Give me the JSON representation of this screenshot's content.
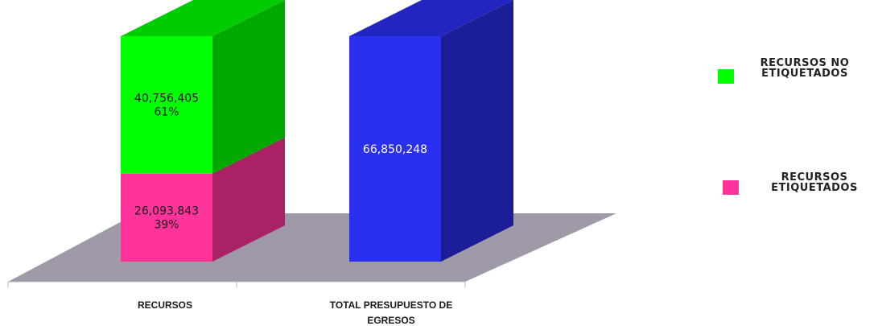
{
  "chart_data": {
    "type": "bar",
    "stacked": true,
    "three_d": true,
    "title": "",
    "xlabel": "",
    "ylabel": "",
    "grid": false,
    "legend_position": "right",
    "categories": [
      "RECURSOS",
      "TOTAL PRESUPUESTO DE EGRESOS"
    ],
    "series": [
      {
        "name": "RECURSOS ETIQUETADOS",
        "color": "#ff3399",
        "values": [
          26093843,
          0
        ],
        "labels": [
          "26,093,843",
          ""
        ],
        "percents": [
          "39%",
          ""
        ]
      },
      {
        "name": "RECURSOS NO ETIQUETADOS",
        "color": "#00ff00",
        "values": [
          40756405,
          0
        ],
        "labels": [
          "40,756,405",
          ""
        ],
        "percents": [
          "61%",
          ""
        ]
      },
      {
        "name": "",
        "color": "#2a2ff0",
        "values": [
          0,
          66850248
        ],
        "labels": [
          "",
          "66,850,248"
        ],
        "percents": [
          "",
          ""
        ]
      }
    ],
    "legend": [
      {
        "lines": [
          "RECURSOS NO",
          "ETIQUETADOS"
        ],
        "color": "#00ff00"
      },
      {
        "lines": [
          "RECURSOS",
          "ETIQUETADOS"
        ],
        "color": "#ff3399"
      }
    ],
    "category_label_lines": [
      [
        "RECURSOS"
      ],
      [
        "TOTAL PRESUPUESTO DE",
        "EGRESOS"
      ]
    ],
    "floor_color": "#a09aa8"
  }
}
